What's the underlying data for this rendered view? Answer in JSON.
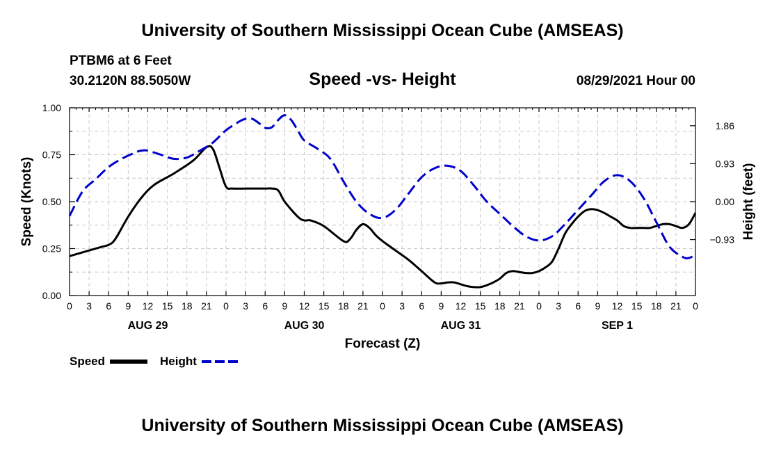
{
  "header": {
    "title": "University of Southern Mississippi Ocean Cube (AMSEAS)",
    "station": "PTBM6 at 6 Feet",
    "coordinates": "30.2120N  88.5050W",
    "subtitle": "Speed -vs- Height",
    "datetime": "08/29/2021 Hour 00"
  },
  "footer": {
    "title": "University of Southern Mississippi Ocean Cube (AMSEAS)"
  },
  "legend": {
    "speed_label": "Speed",
    "height_label": "Height"
  },
  "colors": {
    "speed": "#000000",
    "height": "#0000cc",
    "grid": "#c8c8c8"
  },
  "chart_data": {
    "type": "line",
    "xlabel": "Forecast (Z)",
    "ylabel_left": "Speed (Knots)",
    "ylabel_right": "Height (feet)",
    "x_unit": "hours from 08/29/2021 00Z",
    "xlim": [
      0,
      96
    ],
    "ylim_left": [
      0,
      1.0
    ],
    "ylim_right": [
      -2.3,
      2.3
    ],
    "x_ticks": [
      0,
      3,
      6,
      9,
      12,
      15,
      18,
      21,
      24,
      27,
      30,
      33,
      36,
      39,
      42,
      45,
      48,
      51,
      54,
      57,
      60,
      63,
      66,
      69,
      72,
      75,
      78,
      81,
      84,
      87,
      90,
      93,
      96
    ],
    "x_tick_labels": [
      "0",
      "3",
      "6",
      "9",
      "12",
      "15",
      "18",
      "21",
      "0",
      "3",
      "6",
      "9",
      "12",
      "15",
      "18",
      "21",
      "0",
      "3",
      "6",
      "9",
      "12",
      "15",
      "18",
      "21",
      "0",
      "3",
      "6",
      "9",
      "12",
      "15",
      "18",
      "21",
      "0"
    ],
    "date_labels": [
      {
        "x": 12,
        "label": "AUG 29"
      },
      {
        "x": 36,
        "label": "AUG 30"
      },
      {
        "x": 60,
        "label": "AUG 31"
      },
      {
        "x": 84,
        "label": "SEP 1"
      }
    ],
    "y_ticks_left": [
      0,
      0.25,
      0.5,
      0.75,
      1.0
    ],
    "y_tick_labels_left": [
      "0.00",
      "0.25",
      "0.50",
      "0.75",
      "1.00"
    ],
    "y_ticks_right": [
      -0.93,
      0,
      0.93,
      1.86
    ],
    "y_tick_labels_right": [
      "-0.93",
      "0.00",
      "0.93",
      "1.86"
    ],
    "grid": true,
    "series": [
      {
        "name": "Speed",
        "axis": "left",
        "style": "solid",
        "x": [
          0,
          3,
          5,
          6,
          7,
          9,
          11,
          13,
          16,
          19,
          21,
          22,
          23,
          24,
          25,
          27,
          30,
          31,
          32,
          33,
          35,
          36,
          37,
          39,
          42,
          43,
          44,
          45,
          46,
          47,
          48,
          50,
          52,
          54,
          56,
          57,
          58,
          59,
          60,
          61,
          62,
          63,
          64,
          65,
          66,
          67,
          68,
          69,
          70,
          71,
          72,
          73,
          74,
          75,
          76,
          77,
          78,
          79,
          80,
          81,
          82,
          83,
          84,
          85,
          86,
          87,
          88,
          89,
          90,
          91,
          92,
          93,
          94,
          95,
          96
        ],
        "values": [
          0.21,
          0.24,
          0.26,
          0.27,
          0.3,
          0.42,
          0.52,
          0.59,
          0.65,
          0.72,
          0.79,
          0.78,
          0.68,
          0.58,
          0.57,
          0.57,
          0.57,
          0.57,
          0.56,
          0.5,
          0.42,
          0.4,
          0.4,
          0.37,
          0.29,
          0.3,
          0.35,
          0.38,
          0.36,
          0.32,
          0.29,
          0.24,
          0.19,
          0.13,
          0.07,
          0.065,
          0.07,
          0.07,
          0.06,
          0.05,
          0.045,
          0.045,
          0.055,
          0.07,
          0.09,
          0.12,
          0.13,
          0.125,
          0.12,
          0.12,
          0.13,
          0.15,
          0.18,
          0.25,
          0.33,
          0.38,
          0.42,
          0.45,
          0.46,
          0.455,
          0.44,
          0.42,
          0.4,
          0.37,
          0.36,
          0.36,
          0.36,
          0.36,
          0.37,
          0.38,
          0.38,
          0.37,
          0.36,
          0.38,
          0.44
        ]
      },
      {
        "name": "Height",
        "axis": "right",
        "style": "dashed",
        "x": [
          0,
          2,
          4,
          6,
          8,
          10,
          11,
          12,
          14,
          16,
          18,
          20,
          22,
          24,
          26,
          27,
          28,
          29,
          30,
          31,
          32,
          33,
          34,
          35,
          36,
          38,
          40,
          42,
          44,
          46,
          48,
          50,
          52,
          54,
          56,
          58,
          60,
          62,
          64,
          66,
          68,
          70,
          72,
          74,
          76,
          78,
          80,
          82,
          84,
          86,
          88,
          90,
          92,
          94,
          95,
          96
        ],
        "values": [
          -0.35,
          0.25,
          0.55,
          0.85,
          1.05,
          1.2,
          1.25,
          1.25,
          1.15,
          1.05,
          1.08,
          1.25,
          1.45,
          1.75,
          1.96,
          2.03,
          2.03,
          1.93,
          1.81,
          1.82,
          2.0,
          2.12,
          2.0,
          1.75,
          1.5,
          1.3,
          1.05,
          0.5,
          0.0,
          -0.3,
          -0.4,
          -0.2,
          0.2,
          0.6,
          0.82,
          0.88,
          0.75,
          0.4,
          0.0,
          -0.3,
          -0.6,
          -0.85,
          -0.95,
          -0.85,
          -0.55,
          -0.2,
          0.15,
          0.5,
          0.65,
          0.5,
          0.1,
          -0.5,
          -1.1,
          -1.35,
          -1.38,
          -1.3
        ]
      }
    ]
  }
}
